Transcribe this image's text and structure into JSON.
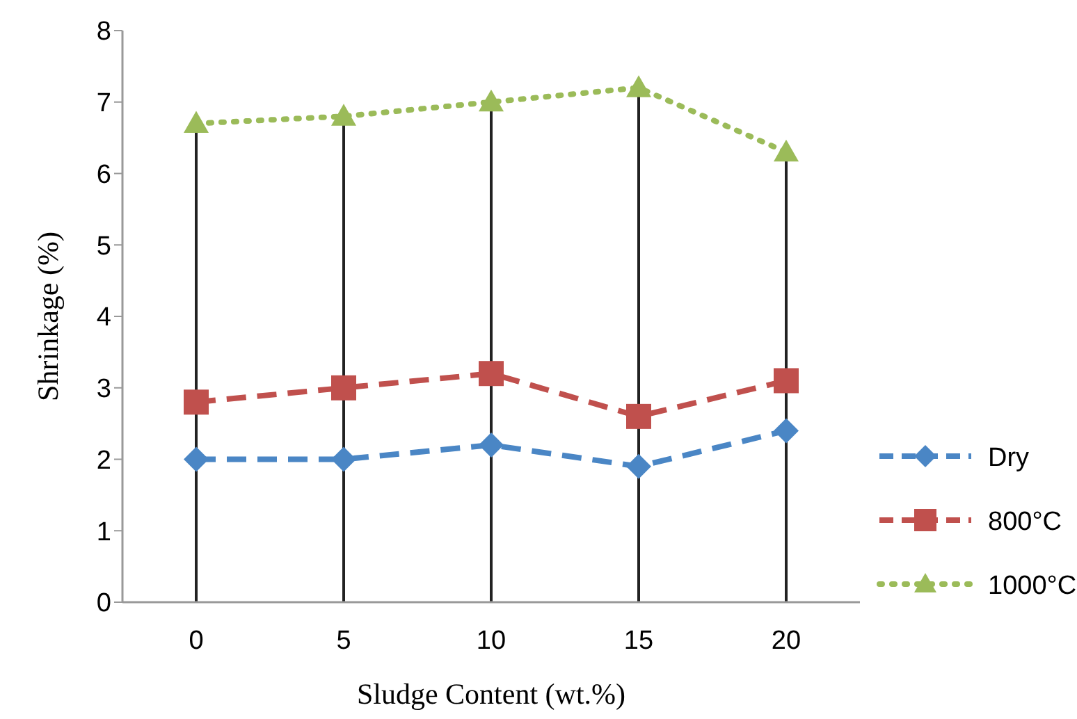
{
  "chart_data": {
    "type": "line",
    "xlabel": "Sludge Content (wt.%)",
    "ylabel": "Shrinkage (%)",
    "categories": [
      "0",
      "5",
      "10",
      "15",
      "20"
    ],
    "series": [
      {
        "name": "Dry",
        "color": "#4a86c5",
        "values": [
          2.0,
          2.0,
          2.2,
          1.9,
          2.4
        ],
        "marker": "diamond",
        "line_style": "dashed"
      },
      {
        "name": "800°C",
        "color": "#c0504d",
        "values": [
          2.8,
          3.0,
          3.2,
          2.6,
          3.1
        ],
        "marker": "square",
        "line_style": "dashed"
      },
      {
        "name": "1000°C",
        "color": "#9bbb59",
        "values": [
          6.7,
          6.8,
          7.0,
          7.2,
          6.3
        ],
        "marker": "triangle",
        "line_style": "dotted"
      }
    ],
    "ylim": [
      0,
      8
    ],
    "yticks": [
      0,
      1,
      2,
      3,
      4,
      5,
      6,
      7,
      8
    ],
    "grid": "x",
    "legend": "right"
  }
}
